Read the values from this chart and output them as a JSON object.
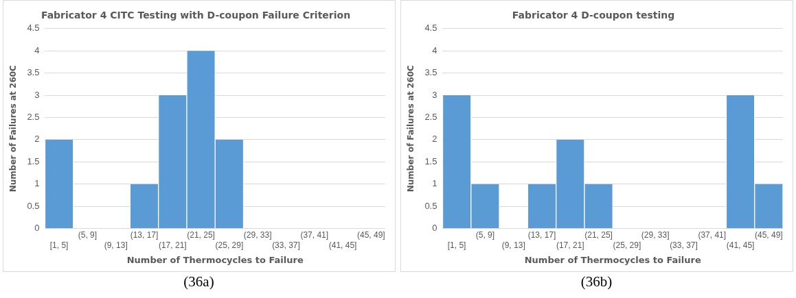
{
  "chart_data": [
    {
      "type": "bar",
      "title": "Fabricator 4 CITC Testing with D-coupon Failure Criterion",
      "xlabel": "Number of Thermocycles to Failure",
      "ylabel": "Number of Failures at 260C",
      "categories": [
        "[1, 5]",
        "(5, 9]",
        "(9, 13]",
        "(13, 17]",
        "(17, 21]",
        "(21, 25]",
        "(25, 29]",
        "(29, 33]",
        "(33, 37]",
        "(37, 41]",
        "(41, 45]",
        "(45, 49]"
      ],
      "values": [
        2,
        0,
        0,
        1,
        3,
        4,
        2,
        0,
        0,
        0,
        0,
        0
      ],
      "color": "#5b9bd5",
      "ylim": [
        0,
        4.5
      ],
      "yticks": [
        0,
        0.5,
        1,
        1.5,
        2,
        2.5,
        3,
        3.5,
        4,
        4.5
      ],
      "grid": "y",
      "legend": false,
      "annotations": [
        "(36a)"
      ]
    },
    {
      "type": "bar",
      "title": "Fabricator 4 D-coupon testing",
      "xlabel": "Number of Thermocycles to Failure",
      "ylabel": "Number of Failures at 260C",
      "categories": [
        "[1, 5]",
        "(5, 9]",
        "(9, 13]",
        "(13, 17]",
        "(17, 21]",
        "(21, 25]",
        "(25, 29]",
        "(29, 33]",
        "(33, 37]",
        "(37, 41]",
        "(41, 45]",
        "(45, 49]"
      ],
      "values": [
        3,
        1,
        0,
        1,
        2,
        1,
        0,
        0,
        0,
        0,
        3,
        1
      ],
      "color": "#5b9bd5",
      "ylim": [
        0,
        4.5
      ],
      "yticks": [
        0,
        0.5,
        1,
        1.5,
        2,
        2.5,
        3,
        3.5,
        4,
        4.5
      ],
      "grid": "y",
      "legend": false,
      "annotations": [
        "(36b)"
      ]
    }
  ]
}
